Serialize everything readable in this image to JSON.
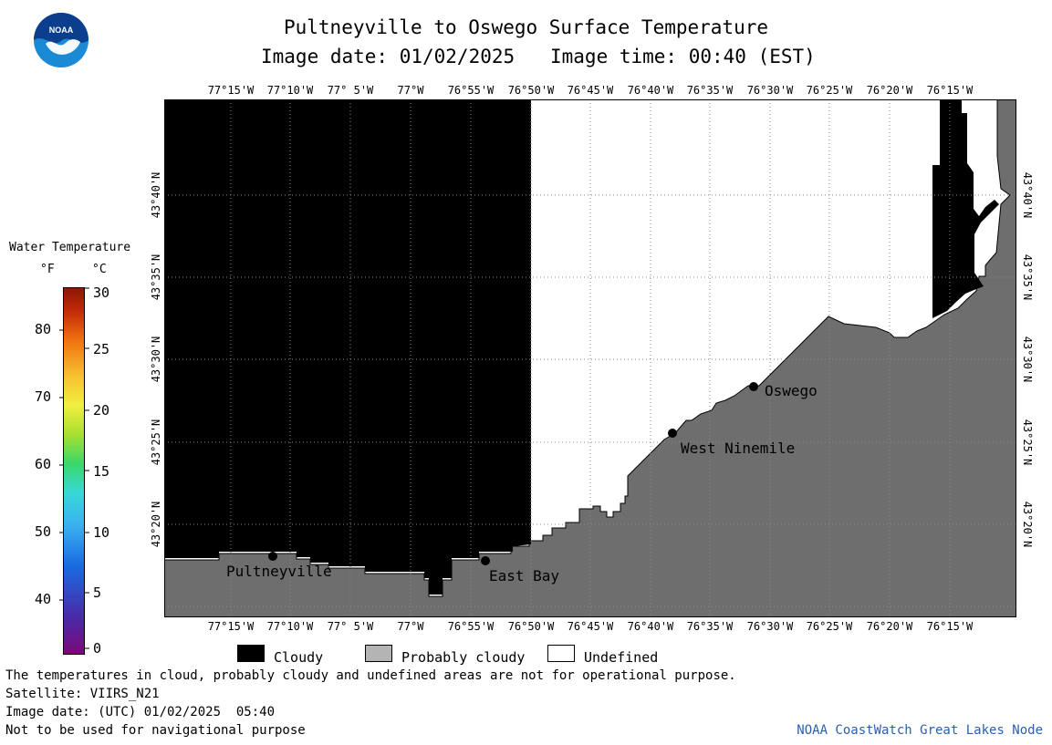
{
  "header": {
    "title": "Pultneyville to Oswego Surface Temperature",
    "image_date_label": "Image date: 01/02/2025",
    "image_time_label": "Image time: 00:40 (EST)"
  },
  "logo": {
    "text": "NOAA",
    "colors": {
      "outer": "#1a8ad4",
      "inner": "#0b3f8e",
      "bird": "#ffffff"
    }
  },
  "colorbar": {
    "title": "Water Temperature",
    "unit_f": "°F",
    "unit_c": "°C",
    "f_ticks": [
      "80",
      "70",
      "60",
      "50",
      "40"
    ],
    "c_ticks": [
      "30",
      "25",
      "20",
      "15",
      "10",
      "5",
      "0"
    ]
  },
  "map": {
    "lon_labels": [
      "77°15'W",
      "77°10'W",
      "77° 5'W",
      "77°W",
      "76°55'W",
      "76°50'W",
      "76°45'W",
      "76°40'W",
      "76°35'W",
      "76°30'W",
      "76°25'W",
      "76°20'W",
      "76°15'W"
    ],
    "lat_labels": [
      "43°40'N",
      "43°35'N",
      "43°30'N",
      "43°25'N",
      "43°20'N"
    ],
    "places": [
      {
        "name": "Pultneyville"
      },
      {
        "name": "East Bay"
      },
      {
        "name": "West Ninemile"
      },
      {
        "name": "Oswego"
      }
    ],
    "colors": {
      "cloudy": "#000000",
      "land": "#6e6e6e",
      "undefined": "#ffffff",
      "grid": "#8a8a8a"
    }
  },
  "legend": {
    "cloudy": "Cloudy",
    "probably_cloudy": "Probably cloudy",
    "undefined": "Undefined",
    "colors": {
      "cloudy": "#000000",
      "probably_cloudy": "#b4b4b4",
      "undefined": "#ffffff"
    }
  },
  "footer": {
    "disclaimer": "The temperatures in cloud, probably cloudy and undefined areas are not for operational purpose.",
    "satellite": "Satellite: VIIRS_N21",
    "image_date_utc": "Image date: (UTC) 01/02/2025  05:40",
    "nav_warning": "Not to be used for navigational purpose",
    "credit": "NOAA CoastWatch Great Lakes Node",
    "credit_color": "#2a5fb0"
  }
}
